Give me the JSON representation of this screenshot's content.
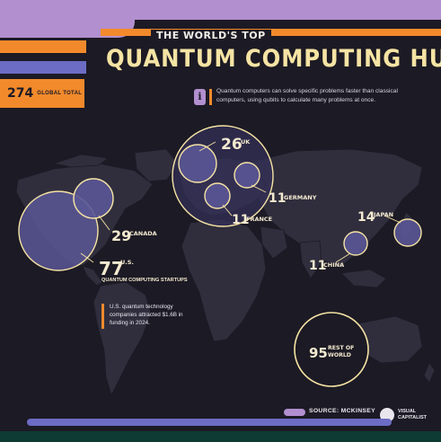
{
  "header": {
    "subtitle": "THE WORLD'S TOP",
    "title": "QUANTUM COMPUTING HUBS",
    "total_value": "274",
    "total_label": "GLOBAL TOTAL",
    "info_icon": "i",
    "info_text": "Quantum computers can solve specific problems faster than classical computers, using qubits to calculate many problems at once."
  },
  "hubs": [
    {
      "name": "UK",
      "value": "26"
    },
    {
      "name": "GERMANY",
      "value": "11"
    },
    {
      "name": "FRANCE",
      "value": "11"
    },
    {
      "name": "CANADA",
      "value": "29"
    },
    {
      "name": "U.S.",
      "value": "77"
    },
    {
      "name": "JAPAN",
      "value": "14"
    },
    {
      "name": "CHINA",
      "value": "11"
    },
    {
      "name": "REST OF WORLD",
      "value": "95"
    }
  ],
  "us_subtext": "QUANTUM COMPUTING STARTUPS",
  "us_note": "U.S. quantum technology companies attracted $1.6B in funding in 2024.",
  "footer": {
    "source": "SOURCE: MCKINSEY",
    "logo_text": "VISUAL CAPITALIST"
  },
  "colors": {
    "background": "#1c1a24",
    "accent_orange": "#f28a2c",
    "accent_lavender": "#b28fcf",
    "accent_blue": "#6c6cc4",
    "title_yellow": "#f6e4a4",
    "bubble_fill": "#5a5796",
    "bubble_stroke": "#f6e4a4"
  }
}
